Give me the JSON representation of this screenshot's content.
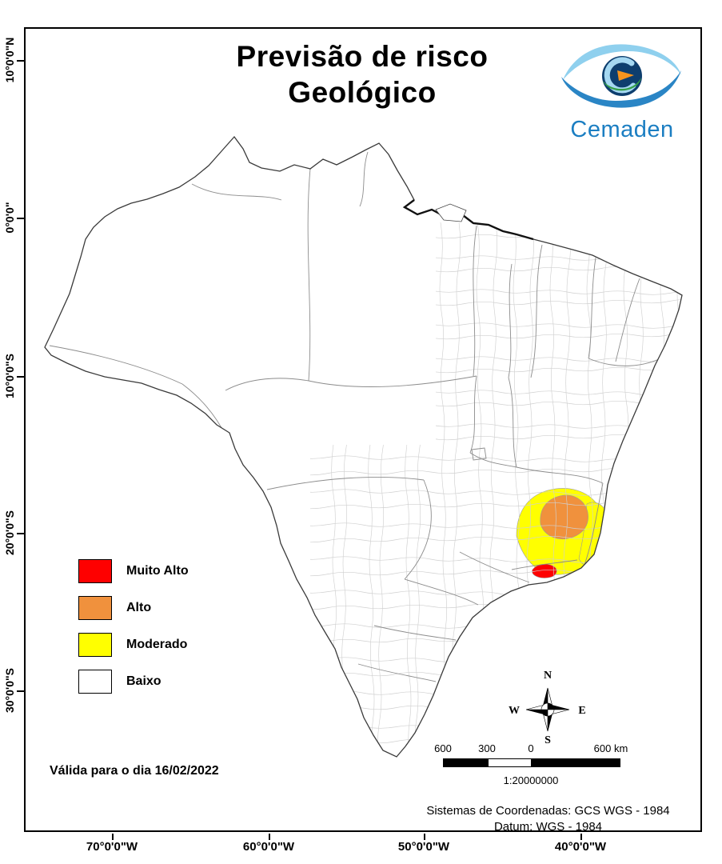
{
  "title": {
    "line1": "Previsão de risco",
    "line2": "Geológico"
  },
  "logo": {
    "text": "Cemaden",
    "color": "#1b7ec2"
  },
  "legend": {
    "items": [
      {
        "label": "Muito Alto",
        "color": "#fe0000"
      },
      {
        "label": "Alto",
        "color": "#f0913d"
      },
      {
        "label": "Moderado",
        "color": "#ffff00"
      },
      {
        "label": "Baixo",
        "color": "#ffffff"
      }
    ]
  },
  "validity_text": "Válida para o dia 16/02/2022",
  "compass": {
    "north": "N",
    "east": "E",
    "south": "S",
    "west": "W"
  },
  "scale_bar": {
    "labels": [
      "600",
      "300",
      "0",
      "600 km"
    ],
    "ratio": "1:20000000"
  },
  "footer": {
    "coord_system": "Sistemas de Coordenadas: GCS WGS - 1984",
    "datum": "Datum: WGS - 1984"
  },
  "axis": {
    "latitude_labels": [
      "10°0'0\"N",
      "0°0'0\"",
      "10°0'0\"S",
      "20°0'0\"S",
      "30°0'0\"S"
    ],
    "longitude_labels": [
      "70°0'0\"W",
      "60°0'0\"W",
      "50°0'0\"W",
      "40°0'0\"W"
    ]
  }
}
